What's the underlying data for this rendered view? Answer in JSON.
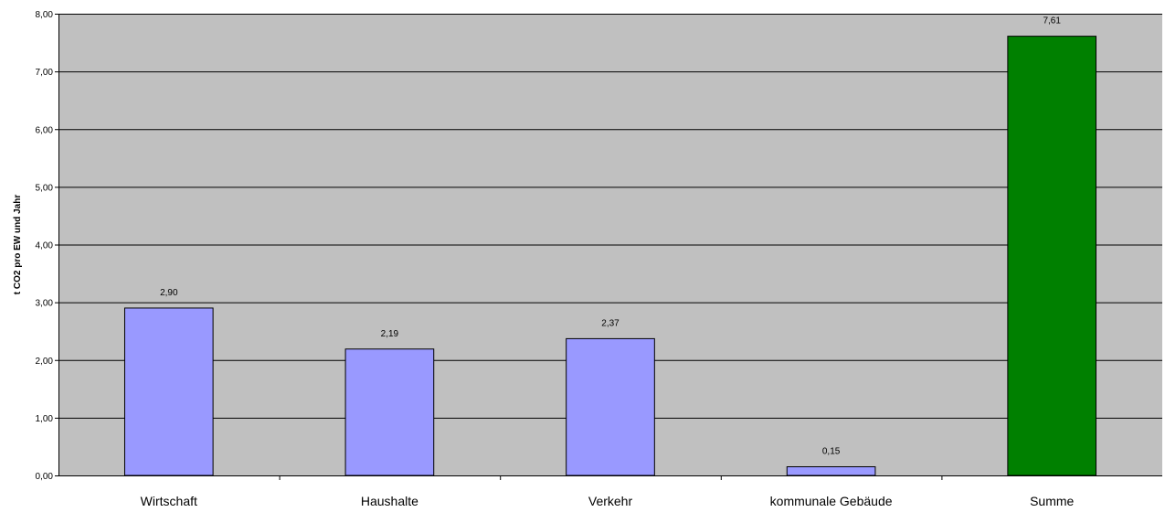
{
  "chart_data": {
    "type": "bar",
    "categories": [
      "Wirtschaft",
      "Haushalte",
      "Verkehr",
      "kommunale Gebäude",
      "Summe"
    ],
    "values": [
      2.9,
      2.19,
      2.37,
      0.15,
      7.61
    ],
    "value_labels": [
      "2,90",
      "2,19",
      "2,37",
      "0,15",
      "7,61"
    ],
    "bar_colors": [
      "#9999ff",
      "#9999ff",
      "#9999ff",
      "#9999ff",
      "#008000"
    ],
    "title": "",
    "xlabel": "",
    "ylabel": "t CO2 pro EW und Jahr",
    "ylim": [
      0,
      8
    ],
    "yticks": [
      0,
      1,
      2,
      3,
      4,
      5,
      6,
      7,
      8
    ],
    "ytick_labels": [
      "0,00",
      "1,00",
      "2,00",
      "3,00",
      "4,00",
      "5,00",
      "6,00",
      "7,00",
      "8,00"
    ],
    "grid": true,
    "legend": "none",
    "plot_background": "#c0c0c0"
  }
}
